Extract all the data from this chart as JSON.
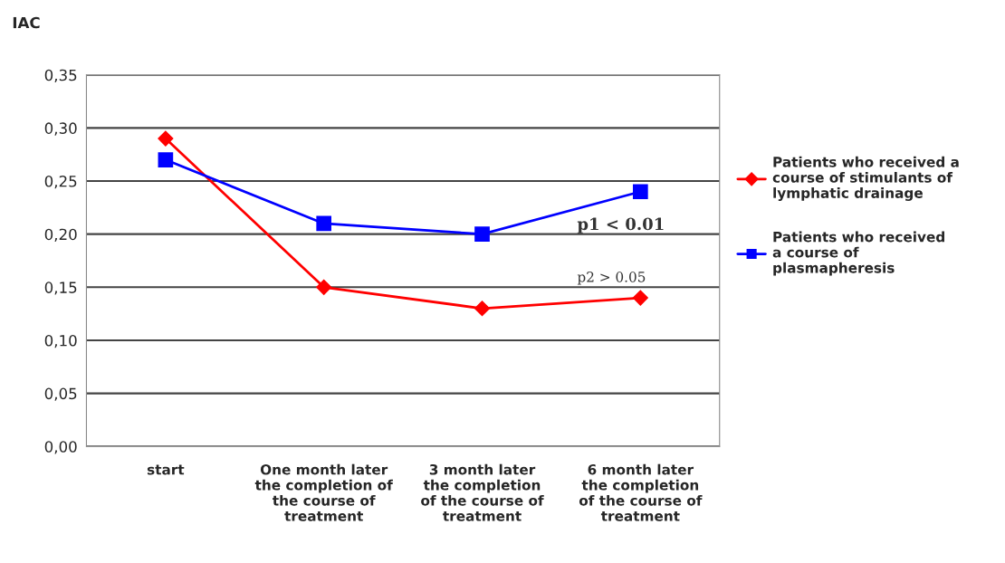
{
  "chart_data": {
    "type": "line",
    "ylabel": "IAC",
    "categories": [
      "start",
      "One month later\nthe completion of\nthe course of\ntreatment",
      "3 month later\nthe completion\nof the course of\ntreatment",
      "6 month later\nthe completion\nof the course of\ntreatment"
    ],
    "series": [
      {
        "name": "Patients who received a\ncourse of stimulants of\nlymphatic drainage",
        "color": "#ff0000",
        "marker": "diamond",
        "values": [
          0.29,
          0.15,
          0.13,
          0.14
        ]
      },
      {
        "name": "Patients who received\na course of\nplasmapheresis",
        "color": "#0000ff",
        "marker": "square",
        "values": [
          0.27,
          0.21,
          0.2,
          0.24
        ]
      }
    ],
    "ylim": [
      0,
      0.35
    ],
    "yticks": [
      {
        "value": 0,
        "label": "0,00"
      },
      {
        "value": 0.05,
        "label": "0,05"
      },
      {
        "value": 0.1,
        "label": "0,10"
      },
      {
        "value": 0.15,
        "label": "0,15"
      },
      {
        "value": 0.2,
        "label": "0,20"
      },
      {
        "value": 0.25,
        "label": "0,25"
      },
      {
        "value": 0.3,
        "label": "0,30"
      },
      {
        "value": 0.35,
        "label": "0,35"
      }
    ],
    "grid": "y",
    "legend": "right",
    "line_style": "solid",
    "annotations": [
      "p1 < 0.01",
      "p2 > 0.05"
    ]
  }
}
